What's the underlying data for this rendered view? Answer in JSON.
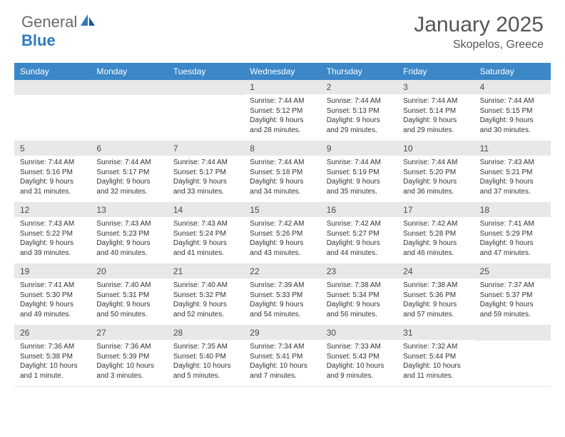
{
  "logo": {
    "text1": "General",
    "text2": "Blue"
  },
  "title": "January 2025",
  "location": "Skopelos, Greece",
  "colors": {
    "header_bg": "#3b87c8",
    "daynum_bg": "#e8e8e8",
    "text": "#333333",
    "title": "#555555"
  },
  "weekdays": [
    "Sunday",
    "Monday",
    "Tuesday",
    "Wednesday",
    "Thursday",
    "Friday",
    "Saturday"
  ],
  "weeks": [
    [
      {
        "n": "",
        "sunrise": "",
        "sunset": "",
        "daylight": ""
      },
      {
        "n": "",
        "sunrise": "",
        "sunset": "",
        "daylight": ""
      },
      {
        "n": "",
        "sunrise": "",
        "sunset": "",
        "daylight": ""
      },
      {
        "n": "1",
        "sunrise": "Sunrise: 7:44 AM",
        "sunset": "Sunset: 5:12 PM",
        "daylight": "Daylight: 9 hours and 28 minutes."
      },
      {
        "n": "2",
        "sunrise": "Sunrise: 7:44 AM",
        "sunset": "Sunset: 5:13 PM",
        "daylight": "Daylight: 9 hours and 29 minutes."
      },
      {
        "n": "3",
        "sunrise": "Sunrise: 7:44 AM",
        "sunset": "Sunset: 5:14 PM",
        "daylight": "Daylight: 9 hours and 29 minutes."
      },
      {
        "n": "4",
        "sunrise": "Sunrise: 7:44 AM",
        "sunset": "Sunset: 5:15 PM",
        "daylight": "Daylight: 9 hours and 30 minutes."
      }
    ],
    [
      {
        "n": "5",
        "sunrise": "Sunrise: 7:44 AM",
        "sunset": "Sunset: 5:16 PM",
        "daylight": "Daylight: 9 hours and 31 minutes."
      },
      {
        "n": "6",
        "sunrise": "Sunrise: 7:44 AM",
        "sunset": "Sunset: 5:17 PM",
        "daylight": "Daylight: 9 hours and 32 minutes."
      },
      {
        "n": "7",
        "sunrise": "Sunrise: 7:44 AM",
        "sunset": "Sunset: 5:17 PM",
        "daylight": "Daylight: 9 hours and 33 minutes."
      },
      {
        "n": "8",
        "sunrise": "Sunrise: 7:44 AM",
        "sunset": "Sunset: 5:18 PM",
        "daylight": "Daylight: 9 hours and 34 minutes."
      },
      {
        "n": "9",
        "sunrise": "Sunrise: 7:44 AM",
        "sunset": "Sunset: 5:19 PM",
        "daylight": "Daylight: 9 hours and 35 minutes."
      },
      {
        "n": "10",
        "sunrise": "Sunrise: 7:44 AM",
        "sunset": "Sunset: 5:20 PM",
        "daylight": "Daylight: 9 hours and 36 minutes."
      },
      {
        "n": "11",
        "sunrise": "Sunrise: 7:43 AM",
        "sunset": "Sunset: 5:21 PM",
        "daylight": "Daylight: 9 hours and 37 minutes."
      }
    ],
    [
      {
        "n": "12",
        "sunrise": "Sunrise: 7:43 AM",
        "sunset": "Sunset: 5:22 PM",
        "daylight": "Daylight: 9 hours and 39 minutes."
      },
      {
        "n": "13",
        "sunrise": "Sunrise: 7:43 AM",
        "sunset": "Sunset: 5:23 PM",
        "daylight": "Daylight: 9 hours and 40 minutes."
      },
      {
        "n": "14",
        "sunrise": "Sunrise: 7:43 AM",
        "sunset": "Sunset: 5:24 PM",
        "daylight": "Daylight: 9 hours and 41 minutes."
      },
      {
        "n": "15",
        "sunrise": "Sunrise: 7:42 AM",
        "sunset": "Sunset: 5:26 PM",
        "daylight": "Daylight: 9 hours and 43 minutes."
      },
      {
        "n": "16",
        "sunrise": "Sunrise: 7:42 AM",
        "sunset": "Sunset: 5:27 PM",
        "daylight": "Daylight: 9 hours and 44 minutes."
      },
      {
        "n": "17",
        "sunrise": "Sunrise: 7:42 AM",
        "sunset": "Sunset: 5:28 PM",
        "daylight": "Daylight: 9 hours and 46 minutes."
      },
      {
        "n": "18",
        "sunrise": "Sunrise: 7:41 AM",
        "sunset": "Sunset: 5:29 PM",
        "daylight": "Daylight: 9 hours and 47 minutes."
      }
    ],
    [
      {
        "n": "19",
        "sunrise": "Sunrise: 7:41 AM",
        "sunset": "Sunset: 5:30 PM",
        "daylight": "Daylight: 9 hours and 49 minutes."
      },
      {
        "n": "20",
        "sunrise": "Sunrise: 7:40 AM",
        "sunset": "Sunset: 5:31 PM",
        "daylight": "Daylight: 9 hours and 50 minutes."
      },
      {
        "n": "21",
        "sunrise": "Sunrise: 7:40 AM",
        "sunset": "Sunset: 5:32 PM",
        "daylight": "Daylight: 9 hours and 52 minutes."
      },
      {
        "n": "22",
        "sunrise": "Sunrise: 7:39 AM",
        "sunset": "Sunset: 5:33 PM",
        "daylight": "Daylight: 9 hours and 54 minutes."
      },
      {
        "n": "23",
        "sunrise": "Sunrise: 7:38 AM",
        "sunset": "Sunset: 5:34 PM",
        "daylight": "Daylight: 9 hours and 56 minutes."
      },
      {
        "n": "24",
        "sunrise": "Sunrise: 7:38 AM",
        "sunset": "Sunset: 5:36 PM",
        "daylight": "Daylight: 9 hours and 57 minutes."
      },
      {
        "n": "25",
        "sunrise": "Sunrise: 7:37 AM",
        "sunset": "Sunset: 5:37 PM",
        "daylight": "Daylight: 9 hours and 59 minutes."
      }
    ],
    [
      {
        "n": "26",
        "sunrise": "Sunrise: 7:36 AM",
        "sunset": "Sunset: 5:38 PM",
        "daylight": "Daylight: 10 hours and 1 minute."
      },
      {
        "n": "27",
        "sunrise": "Sunrise: 7:36 AM",
        "sunset": "Sunset: 5:39 PM",
        "daylight": "Daylight: 10 hours and 3 minutes."
      },
      {
        "n": "28",
        "sunrise": "Sunrise: 7:35 AM",
        "sunset": "Sunset: 5:40 PM",
        "daylight": "Daylight: 10 hours and 5 minutes."
      },
      {
        "n": "29",
        "sunrise": "Sunrise: 7:34 AM",
        "sunset": "Sunset: 5:41 PM",
        "daylight": "Daylight: 10 hours and 7 minutes."
      },
      {
        "n": "30",
        "sunrise": "Sunrise: 7:33 AM",
        "sunset": "Sunset: 5:43 PM",
        "daylight": "Daylight: 10 hours and 9 minutes."
      },
      {
        "n": "31",
        "sunrise": "Sunrise: 7:32 AM",
        "sunset": "Sunset: 5:44 PM",
        "daylight": "Daylight: 10 hours and 11 minutes."
      },
      {
        "n": "",
        "sunrise": "",
        "sunset": "",
        "daylight": ""
      }
    ]
  ]
}
